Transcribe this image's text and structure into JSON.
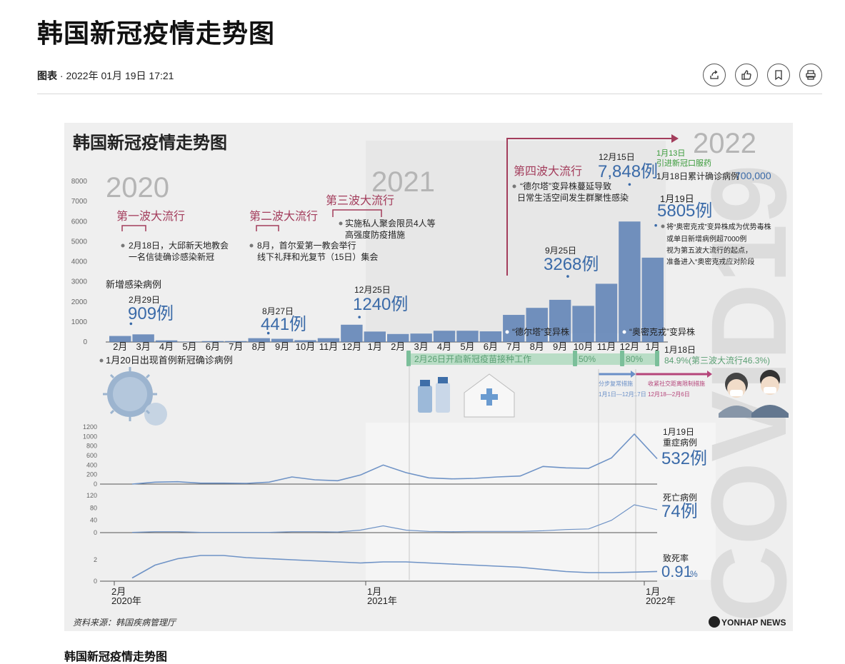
{
  "article": {
    "title": "韩国新冠疫情走势图",
    "category": "图表",
    "separator": "·",
    "datetime": "2022年 01月 19日 17:21",
    "caption": "韩国新冠疫情走势图",
    "actions": [
      {
        "name": "share-icon"
      },
      {
        "name": "like-icon"
      },
      {
        "name": "bookmark-icon"
      },
      {
        "name": "print-icon"
      }
    ]
  },
  "infographic": {
    "title": "韩国新冠疫情走势图",
    "source": "资料来源：韩国疾病管理厅",
    "logo_text": "YONHAP NEWS",
    "watermark": "COVID19",
    "years": [
      "2020",
      "2021",
      "2022"
    ],
    "colors": {
      "bar": "#5b7fb4",
      "wave": "#a33d5c",
      "vaccine": "#7bbf9a",
      "arrow_blue": "#6a8fc7",
      "arrow_pink": "#b5457a",
      "value_blue": "#3a6aa8",
      "green_note": "#3a9a3a"
    },
    "waves": [
      {
        "title": "第一波大流行",
        "note_1": "2月18日，大邱新天地教会",
        "note_2": "一名信徒确诊感染新冠"
      },
      {
        "title": "第二波大流行",
        "note_1": "8月，首尔爱第一教会举行",
        "note_2": "线下礼拜和光复节（15日）集会"
      },
      {
        "title": "第三波大流行",
        "note_1": "实施私人聚会限员4人等",
        "note_2": "高强度防疫措施"
      },
      {
        "title": "第四波大流行",
        "note_1": "“德尔塔”变异株蔓延导致",
        "note_2": "日常生活空间发生群聚性感染"
      }
    ],
    "callouts": [
      {
        "date": "2月29日",
        "value": "909例"
      },
      {
        "date": "8月27日",
        "value": "441例"
      },
      {
        "date": "12月25日",
        "value": "1240例"
      },
      {
        "date": "9月25日",
        "value": "3268例"
      },
      {
        "date": "12月15日",
        "value": "7,848例"
      },
      {
        "date": "1月19日",
        "value": "5805例"
      }
    ],
    "omicron_note": [
      "将“奥密克戎”变异株成为优势毒株",
      "或单日新增病例超7000例",
      "视为第五波大流行的起点，",
      "准备进入“奥密克戎应对阶段"
    ],
    "pill_note": {
      "date": "1月13日",
      "text": "引进新冠口服药"
    },
    "cumulative": {
      "label": "1月18日累计确诊病例",
      "value": "700,000"
    },
    "first_case": "1月20日出现首例新冠确诊病例",
    "new_cases_label": "新增感染病例",
    "variants": [
      "“德尔塔”变异株",
      "“奥密克戎”变异株"
    ],
    "vaccine": {
      "label": "2月26日开启新冠疫苗接种工作",
      "marks": [
        "50%",
        "80%"
      ],
      "end_date": "1月18日",
      "end_text": "84.9%(第三波大流行46.3%)"
    },
    "measures": [
      {
        "label": "分步复常措施",
        "dates": "1月1日—12月17日"
      },
      {
        "label": "收紧社交距离限制措施",
        "dates": "12月18—2月6日"
      }
    ],
    "severe": {
      "date": "1月19日",
      "label": "重症病例",
      "value": "532例"
    },
    "deaths": {
      "label": "死亡病例",
      "value": "74例"
    },
    "fatality": {
      "label": "致死率",
      "value": "0.91",
      "unit": "%"
    },
    "bottom_axis": [
      {
        "month": "2月",
        "year": "2020年"
      },
      {
        "month": "1月",
        "year": "2021年"
      },
      {
        "month": "1月",
        "year": "2022年"
      }
    ]
  },
  "chart_data": [
    {
      "type": "bar",
      "title": "新增感染病例",
      "categories": [
        "2月",
        "3月",
        "4月",
        "5月",
        "6月",
        "7月",
        "8月",
        "9月",
        "10月",
        "11月",
        "12月",
        "1月",
        "2月",
        "3月",
        "4月",
        "5月",
        "6月",
        "7月",
        "8月",
        "9月",
        "10月",
        "11月",
        "12月",
        "1月"
      ],
      "ylim": [
        0,
        8000
      ],
      "yticks": [
        0,
        1000,
        2000,
        3000,
        4000,
        5000,
        6000,
        7000,
        8000
      ],
      "series": [
        {
          "name": "新增感染病例",
          "values": [
            300,
            380,
            80,
            20,
            45,
            45,
            190,
            160,
            90,
            190,
            860,
            520,
            400,
            420,
            560,
            560,
            530,
            1350,
            1700,
            2100,
            1800,
            2900,
            6000,
            4200
          ]
        }
      ],
      "annotations": [
        {
          "x": "2020-02-29",
          "y": 909
        },
        {
          "x": "2020-08-27",
          "y": 441
        },
        {
          "x": "2020-12-25",
          "y": 1240
        },
        {
          "x": "2021-09-25",
          "y": 3268
        },
        {
          "x": "2021-12-15",
          "y": 7848
        },
        {
          "x": "2022-01-19",
          "y": 5805
        }
      ]
    },
    {
      "type": "line",
      "title": "重症病例",
      "ylim": [
        0,
        1200
      ],
      "yticks": [
        0,
        200,
        400,
        600,
        800,
        1000,
        1200
      ],
      "x": [
        "2020-02",
        "2020-03",
        "2020-04",
        "2020-05",
        "2020-06",
        "2020-07",
        "2020-08",
        "2020-09",
        "2020-10",
        "2020-11",
        "2020-12",
        "2021-01",
        "2021-02",
        "2021-03",
        "2021-04",
        "2021-05",
        "2021-06",
        "2021-07",
        "2021-08",
        "2021-09",
        "2021-10",
        "2021-11",
        "2021-12",
        "2022-01"
      ],
      "series": [
        {
          "name": "重症病例",
          "values": [
            0,
            40,
            50,
            20,
            20,
            15,
            40,
            150,
            90,
            70,
            190,
            400,
            240,
            130,
            110,
            120,
            150,
            170,
            370,
            340,
            330,
            550,
            1050,
            532
          ]
        }
      ]
    },
    {
      "type": "line",
      "title": "死亡病例",
      "ylim": [
        0,
        120
      ],
      "yticks": [
        0,
        40,
        80,
        120
      ],
      "x": [
        "2020-02",
        "2020-03",
        "2020-04",
        "2020-05",
        "2020-06",
        "2020-07",
        "2020-08",
        "2020-09",
        "2020-10",
        "2020-11",
        "2020-12",
        "2021-01",
        "2021-02",
        "2021-03",
        "2021-04",
        "2021-05",
        "2021-06",
        "2021-07",
        "2021-08",
        "2021-09",
        "2021-10",
        "2021-11",
        "2021-12",
        "2022-01"
      ],
      "series": [
        {
          "name": "死亡病例",
          "values": [
            1,
            3,
            3,
            1,
            1,
            1,
            1,
            3,
            3,
            2,
            8,
            22,
            8,
            4,
            3,
            4,
            4,
            4,
            6,
            10,
            12,
            40,
            90,
            74
          ]
        }
      ]
    },
    {
      "type": "line",
      "title": "致死率",
      "ylim": [
        0,
        3
      ],
      "yticks": [
        0,
        2
      ],
      "x": [
        "2020-02",
        "2020-03",
        "2020-04",
        "2020-05",
        "2020-06",
        "2020-07",
        "2020-08",
        "2020-09",
        "2020-10",
        "2020-11",
        "2020-12",
        "2021-01",
        "2021-02",
        "2021-03",
        "2021-04",
        "2021-05",
        "2021-06",
        "2021-07",
        "2021-08",
        "2021-09",
        "2021-10",
        "2021-11",
        "2021-12",
        "2022-01"
      ],
      "series": [
        {
          "name": "致死率",
          "values": [
            0.3,
            1.5,
            2.1,
            2.4,
            2.4,
            2.2,
            2.1,
            2.0,
            1.9,
            1.8,
            1.7,
            1.8,
            1.8,
            1.7,
            1.6,
            1.5,
            1.4,
            1.3,
            1.1,
            0.9,
            0.8,
            0.8,
            0.85,
            0.91
          ]
        }
      ]
    }
  ]
}
